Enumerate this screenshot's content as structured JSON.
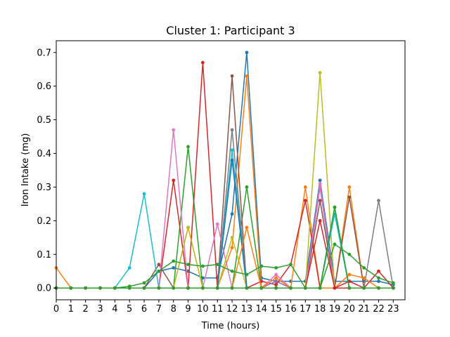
{
  "chart_data": {
    "type": "line",
    "title": "Cluster 1: Participant 3",
    "xlabel": "Time (hours)",
    "ylabel": "Iron Intake (mg)",
    "xlim": [
      0,
      23.8
    ],
    "ylim": [
      -0.035,
      0.735
    ],
    "x_ticks": [
      0,
      1,
      2,
      3,
      4,
      5,
      6,
      7,
      8,
      9,
      10,
      11,
      12,
      13,
      14,
      15,
      16,
      17,
      18,
      19,
      20,
      21,
      22,
      23
    ],
    "y_ticks": [
      0.0,
      0.1,
      0.2,
      0.3,
      0.4,
      0.5,
      0.6,
      0.7
    ],
    "y_tick_labels": [
      "0.0",
      "0.1",
      "0.2",
      "0.3",
      "0.4",
      "0.5",
      "0.6",
      "0.7"
    ],
    "grid": false,
    "legend": false,
    "x": [
      0,
      1,
      2,
      3,
      4,
      5,
      6,
      7,
      8,
      9,
      10,
      11,
      12,
      13,
      14,
      15,
      16,
      17,
      18,
      19,
      20,
      21,
      22,
      23
    ],
    "series": [
      {
        "color": "#1f77b4",
        "values": [
          0,
          0,
          0,
          0,
          0,
          0,
          0,
          0.05,
          0.06,
          0.05,
          0.03,
          0.03,
          0.22,
          0.7,
          0.03,
          0.02,
          0.02,
          0.02,
          0.32,
          0.02,
          0.02,
          0.02,
          0.02,
          0.01
        ]
      },
      {
        "color": "#ff7f0e",
        "values": [
          0.06,
          0,
          0,
          0,
          0,
          0,
          0,
          0,
          0,
          0.18,
          0,
          0,
          0.12,
          0.63,
          0,
          0,
          0,
          0.3,
          0,
          0,
          0.3,
          0,
          0,
          0
        ]
      },
      {
        "color": "#2ca02c",
        "values": [
          0,
          0,
          0,
          0,
          0,
          0,
          0,
          0,
          0,
          0.42,
          0,
          0,
          0,
          0.3,
          0,
          0,
          0,
          0,
          0,
          0.24,
          0,
          0,
          0,
          0
        ]
      },
      {
        "color": "#d62728",
        "values": [
          0,
          0,
          0,
          0,
          0,
          0,
          0,
          0,
          0.32,
          0,
          0.67,
          0,
          0,
          0,
          0.02,
          0.01,
          0.07,
          0.26,
          0,
          0,
          0.02,
          0,
          0.05,
          0
        ]
      },
      {
        "color": "#9467bd",
        "values": [
          0,
          0,
          0,
          0,
          0,
          0,
          0,
          0,
          0,
          0,
          0,
          0,
          0,
          0,
          0,
          0.02,
          0,
          0,
          0.3,
          0,
          0,
          0,
          0,
          0
        ]
      },
      {
        "color": "#8c564b",
        "values": [
          0,
          0,
          0,
          0,
          0,
          0,
          0,
          0.07,
          0,
          0,
          0,
          0,
          0.63,
          0,
          0,
          0,
          0,
          0,
          0.26,
          0,
          0.27,
          0,
          0,
          0
        ]
      },
      {
        "color": "#e377c2",
        "values": [
          0,
          0,
          0,
          0,
          0,
          0,
          0,
          0,
          0.47,
          0,
          0,
          0.19,
          0,
          0,
          0,
          0.04,
          0,
          0,
          0.31,
          0,
          0,
          0,
          0,
          0
        ]
      },
      {
        "color": "#7f7f7f",
        "values": [
          0,
          0,
          0,
          0,
          0,
          0,
          0,
          0,
          0,
          0,
          0,
          0,
          0.47,
          0,
          0,
          0,
          0,
          0,
          0,
          0,
          0,
          0,
          0.26,
          0
        ]
      },
      {
        "color": "#bcbd22",
        "values": [
          0,
          0,
          0,
          0,
          0,
          0,
          0,
          0,
          0,
          0.18,
          0,
          0,
          0.15,
          0,
          0,
          0,
          0,
          0,
          0.64,
          0,
          0,
          0,
          0,
          0
        ]
      },
      {
        "color": "#17becf",
        "values": [
          0,
          0,
          0,
          0,
          0,
          0.06,
          0.28,
          0,
          0,
          0,
          0,
          0,
          0.41,
          0,
          0,
          0,
          0,
          0,
          0,
          0.22,
          0,
          0,
          0,
          0
        ]
      },
      {
        "color": "#1f77b4",
        "values": [
          0,
          0,
          0,
          0,
          0,
          0,
          0,
          0,
          0,
          0,
          0,
          0,
          0.38,
          0,
          0,
          0,
          0,
          0,
          0,
          0,
          0,
          0,
          0,
          0
        ]
      },
      {
        "color": "#ff7f0e",
        "values": [
          0,
          0,
          0,
          0,
          0,
          0,
          0,
          0,
          0,
          0,
          0,
          0,
          0,
          0.18,
          0,
          0.03,
          0,
          0,
          0,
          0,
          0.04,
          0.03,
          0,
          0
        ]
      },
      {
        "color": "#2ca02c",
        "values": [
          0,
          0,
          0,
          0,
          0,
          0.005,
          0.015,
          0.05,
          0.08,
          0.07,
          0.065,
          0.07,
          0.05,
          0.04,
          0.065,
          0.06,
          0.07,
          0,
          0,
          0.13,
          0.1,
          0.06,
          0.03,
          0.015
        ]
      },
      {
        "color": "#d62728",
        "values": [
          0,
          0,
          0,
          0,
          0,
          0,
          0,
          0,
          0,
          0,
          0,
          0,
          0,
          0,
          0,
          0,
          0,
          0,
          0.2,
          0,
          0,
          0,
          0,
          0
        ]
      },
      {
        "color": "#2ca02c",
        "values": [
          0,
          0,
          0,
          0,
          0,
          0,
          0,
          0,
          0,
          0,
          0,
          0,
          0,
          0,
          0,
          0,
          0,
          0,
          0,
          0.24,
          0,
          0,
          0,
          0
        ]
      }
    ]
  }
}
